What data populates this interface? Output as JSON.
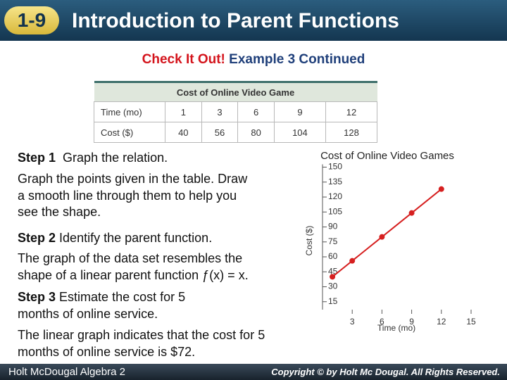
{
  "header": {
    "number": "1-9",
    "title": "Introduction to Parent Functions"
  },
  "subtitle": {
    "lead": "Check It Out!",
    "text": "Example 3 Continued"
  },
  "table": {
    "title": "Cost of Online Video Game",
    "rows": [
      [
        "Time (mo)",
        "1",
        "3",
        "6",
        "9",
        "12"
      ],
      [
        "Cost ($)",
        "40",
        "56",
        "80",
        "104",
        "128"
      ]
    ]
  },
  "steps": [
    {
      "label": "Step 1",
      "title": "Graph the relation.",
      "text": "Graph the points given in the table. Draw a smooth line through them to help you see the shape."
    },
    {
      "label": "Step 2",
      "title": "Identify the parent function.",
      "text": "The graph of the data set resembles the shape of a linear parent function ƒ(x) = x."
    },
    {
      "label": "Step 3",
      "title": "Estimate the cost for 5 months of online service.",
      "text": "The linear graph indicates that the cost for 5 months of online service is $72."
    }
  ],
  "footer": {
    "left": "Holt McDougal Algebra 2",
    "right": "Copyright © by Holt Mc Dougal. All Rights Reserved."
  },
  "chart_data": {
    "type": "line",
    "title": "Cost of Online Video Games",
    "x_label": "Time (mo)",
    "y_label": "Cost ($)",
    "x": [
      1,
      3,
      6,
      9,
      12
    ],
    "series": [
      {
        "name": "Cost",
        "color": "#d62020",
        "values": [
          40,
          56,
          80,
          104,
          128
        ]
      }
    ],
    "xlim": [
      0,
      15
    ],
    "ylim": [
      0,
      150
    ],
    "xticks": [
      3,
      6,
      9,
      12,
      15
    ],
    "yticks": [
      15,
      30,
      45,
      60,
      75,
      90,
      105,
      120,
      135,
      150
    ]
  }
}
